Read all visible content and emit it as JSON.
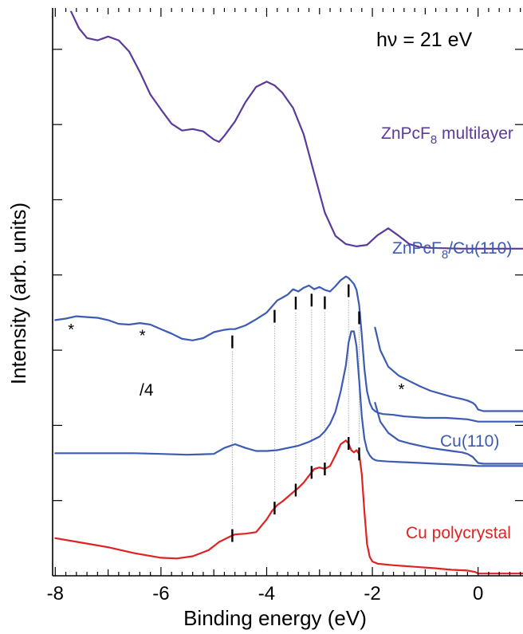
{
  "chart_data": {
    "type": "line",
    "title": "",
    "xlabel": "Binding energy (eV)",
    "ylabel": "Intensity (arb. units)",
    "xlim": [
      -8.05,
      0.85
    ],
    "ylim": [
      0,
      7.55
    ],
    "x_ticks": [
      -8,
      -6,
      -4,
      -2,
      0
    ],
    "x_tick_labels": [
      "-8",
      "-6",
      "-4",
      "-2",
      "0"
    ],
    "y_ticklabels_shown": false,
    "grid": false,
    "legend": "none",
    "photon_energy_label": "hν = 21 eV",
    "annotations": {
      "scale_label": "/4",
      "satellite_marker": "*"
    },
    "colors": {
      "multilayer": "#5b3a9a",
      "interface": "#3d5bb0",
      "cu110": "#3d5bb0",
      "polycrystal": "#e02222",
      "markers": "#000000",
      "guides": "#888888"
    },
    "series": [
      {
        "name": "ZnPcF8 multilayer",
        "label_base": "ZnPcF",
        "label_sub": "8",
        "label_tail": " multilayer",
        "color": "#5b3a9a",
        "x": [
          -7.7,
          -7.55,
          -7.4,
          -7.2,
          -7.0,
          -6.8,
          -6.6,
          -6.4,
          -6.2,
          -6.0,
          -5.8,
          -5.6,
          -5.4,
          -5.2,
          -5.0,
          -4.9,
          -4.8,
          -4.6,
          -4.4,
          -4.2,
          -4.0,
          -3.85,
          -3.7,
          -3.5,
          -3.3,
          -3.1,
          -2.9,
          -2.7,
          -2.5,
          -2.3,
          -2.1,
          -1.9,
          -1.7,
          -1.5,
          -1.3,
          -1.1,
          -0.9,
          -0.6,
          -0.3,
          0.0,
          0.3,
          0.6,
          0.85
        ],
        "y": [
          7.5,
          7.28,
          7.15,
          7.12,
          7.17,
          7.12,
          6.97,
          6.7,
          6.4,
          6.2,
          6.01,
          5.92,
          5.94,
          5.91,
          5.8,
          5.77,
          5.85,
          6.04,
          6.3,
          6.5,
          6.57,
          6.52,
          6.42,
          6.22,
          5.87,
          5.35,
          4.83,
          4.52,
          4.41,
          4.38,
          4.4,
          4.53,
          4.62,
          4.52,
          4.41,
          4.37,
          4.36,
          4.355,
          4.35,
          4.35,
          4.35,
          4.35,
          4.35
        ]
      },
      {
        "name": "ZnPcF8/Cu(110)",
        "label_base": "ZnPcF",
        "label_sub": "8",
        "label_tail": "/Cu(110)",
        "color": "#3d5bb0",
        "segments": [
          {
            "x": [
              -8.0,
              -7.8,
              -7.6,
              -7.4,
              -7.2,
              -7.0,
              -6.8,
              -6.6,
              -6.4,
              -6.2,
              -6.0,
              -5.8,
              -5.6,
              -5.4,
              -5.2,
              -5.0,
              -4.8,
              -4.7,
              -4.6,
              -4.4,
              -4.2,
              -4.0,
              -3.9,
              -3.8,
              -3.7,
              -3.6,
              -3.5,
              -3.4,
              -3.3,
              -3.2,
              -3.1,
              -3.0,
              -2.9,
              -2.8,
              -2.7,
              -2.6,
              -2.5,
              -2.45,
              -2.4,
              -2.35,
              -2.3,
              -2.25,
              -2.2,
              -2.15,
              -2.1,
              -2.05,
              -2.0,
              -1.95,
              -1.9,
              -1.8,
              -1.6,
              -1.4,
              -1.2,
              -1.0,
              -0.8,
              -0.6,
              -0.4,
              -0.2,
              0.0,
              0.2,
              0.5,
              0.85
            ],
            "y": [
              3.4,
              3.42,
              3.45,
              3.44,
              3.43,
              3.4,
              3.35,
              3.34,
              3.36,
              3.34,
              3.28,
              3.22,
              3.15,
              3.13,
              3.16,
              3.24,
              3.27,
              3.28,
              3.28,
              3.33,
              3.41,
              3.5,
              3.58,
              3.66,
              3.7,
              3.74,
              3.81,
              3.78,
              3.83,
              3.86,
              3.81,
              3.84,
              3.8,
              3.78,
              3.85,
              3.93,
              3.98,
              3.96,
              3.92,
              3.88,
              3.8,
              3.6,
              3.2,
              2.75,
              2.45,
              2.3,
              2.22,
              2.19,
              2.17,
              2.15,
              2.14,
              2.12,
              2.11,
              2.1,
              2.1,
              2.1,
              2.09,
              2.08,
              2.05,
              2.05,
              2.05,
              2.05
            ]
          },
          {
            "x": [
              -1.95,
              -1.85,
              -1.7,
              -1.5,
              -1.3,
              -1.1,
              -0.9,
              -0.7,
              -0.5,
              -0.3,
              -0.2,
              -0.1,
              -0.05,
              0.0,
              0.1,
              0.3,
              0.6,
              0.85
            ],
            "y": [
              3.3,
              3.0,
              2.78,
              2.66,
              2.59,
              2.52,
              2.46,
              2.42,
              2.38,
              2.35,
              2.33,
              2.3,
              2.27,
              2.21,
              2.19,
              2.19,
              2.19,
              2.19
            ]
          }
        ]
      },
      {
        "name": "Cu(110)",
        "label_base": "Cu(110)",
        "color": "#3d5bb0",
        "segments": [
          {
            "x": [
              -8.0,
              -7.5,
              -7.0,
              -6.5,
              -6.0,
              -5.5,
              -5.0,
              -4.8,
              -4.6,
              -4.4,
              -4.2,
              -4.0,
              -3.8,
              -3.6,
              -3.4,
              -3.2,
              -3.0,
              -2.9,
              -2.8,
              -2.7,
              -2.6,
              -2.5,
              -2.45,
              -2.4,
              -2.35,
              -2.3,
              -2.25,
              -2.2,
              -2.15,
              -2.1,
              -2.05,
              -2.0,
              -1.95,
              -1.9,
              -1.7,
              -1.4,
              -1.1,
              -0.8,
              -0.5,
              -0.2,
              0.0,
              0.2,
              0.5,
              0.85
            ],
            "y": [
              1.63,
              1.63,
              1.63,
              1.63,
              1.62,
              1.61,
              1.62,
              1.7,
              1.75,
              1.7,
              1.66,
              1.66,
              1.67,
              1.7,
              1.73,
              1.78,
              1.85,
              1.92,
              2.02,
              2.18,
              2.45,
              2.8,
              3.1,
              3.25,
              3.25,
              3.05,
              2.6,
              2.12,
              1.82,
              1.67,
              1.6,
              1.56,
              1.54,
              1.53,
              1.52,
              1.51,
              1.5,
              1.49,
              1.48,
              1.47,
              1.46,
              1.46,
              1.46,
              1.46
            ]
          },
          {
            "x": [
              -1.95,
              -1.85,
              -1.7,
              -1.5,
              -1.3,
              -1.1,
              -0.9,
              -0.7,
              -0.5,
              -0.3,
              -0.2,
              -0.1,
              -0.05,
              0.0,
              0.1,
              0.3,
              0.6,
              0.85
            ],
            "y": [
              2.3,
              2.05,
              1.9,
              1.8,
              1.76,
              1.73,
              1.7,
              1.68,
              1.66,
              1.64,
              1.62,
              1.58,
              1.54,
              1.5,
              1.49,
              1.49,
              1.49,
              1.49
            ]
          }
        ]
      },
      {
        "name": "Cu polycrystal",
        "label_base": "Cu polycrystal",
        "color": "#e02222",
        "x": [
          -8.0,
          -7.5,
          -7.0,
          -6.5,
          -6.0,
          -5.7,
          -5.4,
          -5.1,
          -4.9,
          -4.7,
          -4.6,
          -4.4,
          -4.2,
          -4.0,
          -3.9,
          -3.8,
          -3.7,
          -3.6,
          -3.5,
          -3.4,
          -3.3,
          -3.2,
          -3.1,
          -3.0,
          -2.9,
          -2.8,
          -2.7,
          -2.6,
          -2.5,
          -2.45,
          -2.4,
          -2.35,
          -2.3,
          -2.25,
          -2.2,
          -2.15,
          -2.1,
          -2.05,
          -2.0,
          -1.9,
          -1.6,
          -1.2,
          -0.8,
          -0.5,
          -0.2,
          -0.05,
          0.0,
          0.2,
          0.5,
          0.85
        ],
        "y": [
          0.5,
          0.44,
          0.38,
          0.3,
          0.24,
          0.23,
          0.26,
          0.34,
          0.45,
          0.52,
          0.55,
          0.56,
          0.58,
          0.75,
          0.86,
          0.94,
          0.99,
          1.05,
          1.11,
          1.17,
          1.24,
          1.33,
          1.42,
          1.44,
          1.42,
          1.46,
          1.6,
          1.75,
          1.8,
          1.76,
          1.67,
          1.64,
          1.67,
          1.62,
          1.35,
          0.85,
          0.42,
          0.25,
          0.19,
          0.16,
          0.14,
          0.12,
          0.1,
          0.08,
          0.07,
          0.05,
          0.03,
          0.03,
          0.03,
          0.03
        ]
      }
    ],
    "marker_energies": [
      -4.65,
      -3.85,
      -3.45,
      -3.15,
      -2.9,
      -2.45,
      -2.25
    ],
    "satellite_markers_x": [
      -7.7,
      -6.35,
      -1.45
    ]
  }
}
